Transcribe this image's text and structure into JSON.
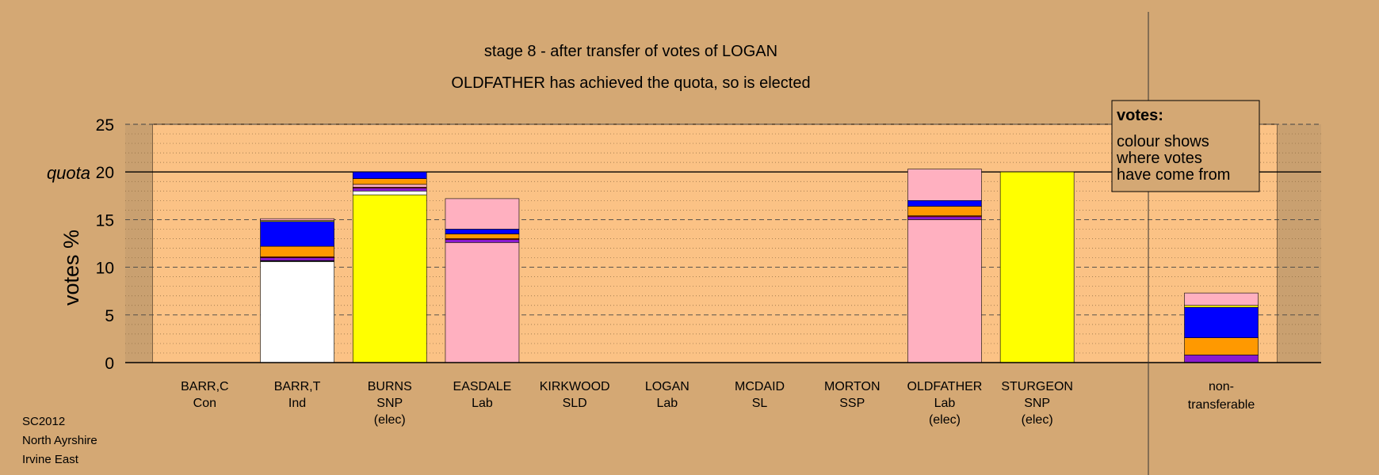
{
  "chart_data": {
    "type": "bar",
    "stacked": true,
    "title": "stage 8 - after transfer of votes of LOGAN",
    "subtitle": "OLDFATHER has achieved the quota, so is elected",
    "ylabel": "votes %",
    "ylim": [
      0,
      25
    ],
    "yticks": [
      "0",
      "5",
      "10",
      "15",
      "20",
      "25"
    ],
    "quota": {
      "label": "quota",
      "value": 20
    },
    "legend": {
      "position": "top-right",
      "title": "votes:",
      "lines": [
        "colour shows",
        "where votes",
        "have come from"
      ]
    },
    "colors": {
      "Ind": "#ffffff",
      "SNP": "#ffff00",
      "Lab": "#ffb0c0",
      "SLD": "#ff9900",
      "Con": "#0000ff",
      "SSP": "#e01010",
      "SL": "#8a1ad0",
      "NT": "#000000"
    },
    "candidates": [
      {
        "name": "BARR,C",
        "party": "Con",
        "elected": "",
        "segments": []
      },
      {
        "name": "BARR,T",
        "party": "Ind",
        "elected": "",
        "segments": [
          {
            "source": "Ind",
            "value": 10.6
          },
          {
            "source": "NT",
            "value": 0.1
          },
          {
            "source": "SL",
            "value": 0.3
          },
          {
            "source": "SSP",
            "value": 0.1
          },
          {
            "source": "SLD",
            "value": 1.1
          },
          {
            "source": "Con",
            "value": 2.6
          },
          {
            "source": "SNP",
            "value": 0.1
          },
          {
            "source": "Lab",
            "value": 0.2
          }
        ]
      },
      {
        "name": "BURNS",
        "party": "SNP",
        "elected": "(elec)",
        "segments": [
          {
            "source": "SNP",
            "value": 17.6
          },
          {
            "source": "Ind",
            "value": 0.4
          },
          {
            "source": "SL",
            "value": 0.3
          },
          {
            "source": "SSP",
            "value": 0.1
          },
          {
            "source": "Lab",
            "value": 0.3
          },
          {
            "source": "SLD",
            "value": 0.6
          },
          {
            "source": "Con",
            "value": 0.7
          }
        ]
      },
      {
        "name": "EASDALE",
        "party": "Lab",
        "elected": "",
        "segments": [
          {
            "source": "Lab",
            "value": 12.6
          },
          {
            "source": "SL",
            "value": 0.3
          },
          {
            "source": "SSP",
            "value": 0.1
          },
          {
            "source": "SLD",
            "value": 0.5
          },
          {
            "source": "Con",
            "value": 0.5
          },
          {
            "source": "Lab",
            "value": 3.2
          }
        ]
      },
      {
        "name": "KIRKWOOD",
        "party": "SLD",
        "elected": "",
        "segments": []
      },
      {
        "name": "LOGAN",
        "party": "Lab",
        "elected": "",
        "segments": []
      },
      {
        "name": "MCDAID",
        "party": "SL",
        "elected": "",
        "segments": []
      },
      {
        "name": "MORTON",
        "party": "SSP",
        "elected": "",
        "segments": []
      },
      {
        "name": "OLDFATHER",
        "party": "Lab",
        "elected": "(elec)",
        "segments": [
          {
            "source": "Lab",
            "value": 15.0
          },
          {
            "source": "SL",
            "value": 0.3
          },
          {
            "source": "SSP",
            "value": 0.1
          },
          {
            "source": "SLD",
            "value": 1.0
          },
          {
            "source": "Con",
            "value": 0.6
          },
          {
            "source": "Lab",
            "value": 3.3
          }
        ]
      },
      {
        "name": "STURGEON",
        "party": "SNP",
        "elected": "(elec)",
        "segments": [
          {
            "source": "SNP",
            "value": 20.0
          }
        ]
      }
    ],
    "nontransferable": {
      "label_line1": "non-",
      "label_line2": "transferable",
      "segments": [
        {
          "source": "SL",
          "value": 0.8
        },
        {
          "source": "SLD",
          "value": 1.8
        },
        {
          "source": "Con",
          "value": 3.2
        },
        {
          "source": "SNP",
          "value": 0.2
        },
        {
          "source": "Lab",
          "value": 1.3
        }
      ]
    }
  },
  "footer": {
    "line1": "SC2012",
    "line2": "North Ayrshire",
    "line3": "Irvine East"
  }
}
